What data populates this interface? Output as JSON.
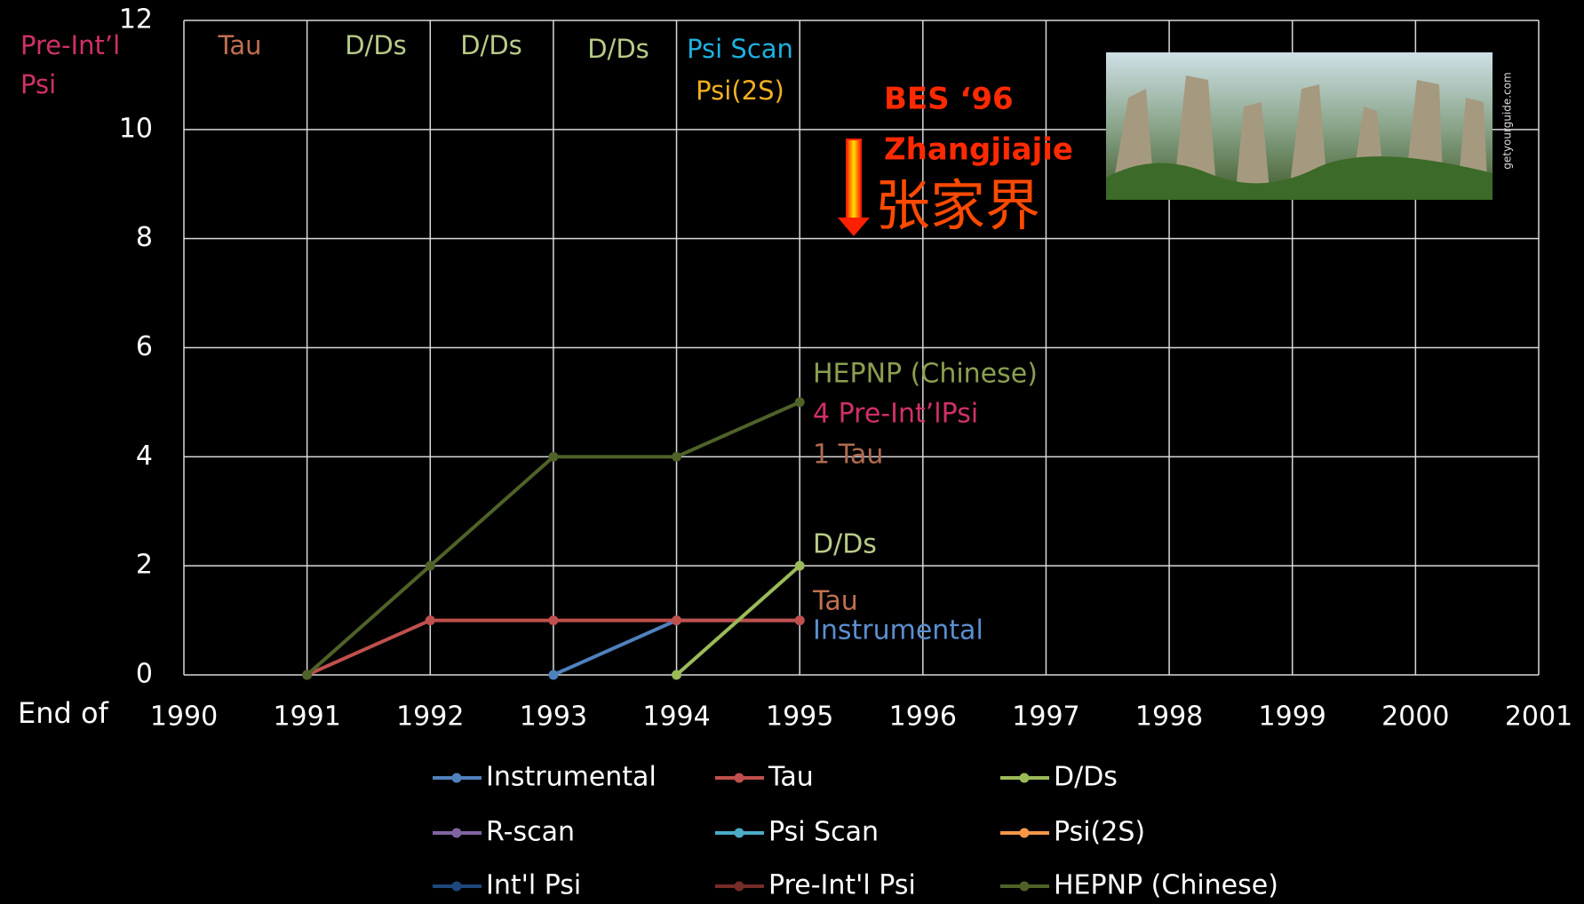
{
  "chart_data": {
    "type": "line",
    "x": [
      1991,
      1992,
      1993,
      1994,
      1995
    ],
    "series": [
      {
        "name": "Instrumental",
        "color": "#4f81bd",
        "values": [
          null,
          null,
          0,
          1,
          1
        ]
      },
      {
        "name": "Tau",
        "color": "#c0504d",
        "values": [
          0,
          1,
          1,
          1,
          1
        ]
      },
      {
        "name": "D/Ds",
        "color": "#9bbb59",
        "values": [
          null,
          null,
          null,
          0,
          2
        ]
      },
      {
        "name": "R-scan",
        "color": "#8064a2",
        "values": [
          null,
          null,
          null,
          null,
          null
        ]
      },
      {
        "name": "Psi Scan",
        "color": "#4bacc6",
        "values": [
          null,
          null,
          null,
          null,
          null
        ]
      },
      {
        "name": "Psi(2S)",
        "color": "#f79646",
        "values": [
          null,
          null,
          null,
          null,
          null
        ]
      },
      {
        "name": "Int'l Psi",
        "color": "#1f497d",
        "values": [
          null,
          null,
          null,
          null,
          null
        ]
      },
      {
        "name": "Pre-Int'l Psi",
        "color": "#772c2a",
        "values": [
          null,
          null,
          null,
          null,
          null
        ]
      },
      {
        "name": "HEPNP (Chinese)",
        "color": "#4f6228",
        "values": [
          0,
          2,
          4,
          4,
          5
        ]
      }
    ],
    "xlim": [
      1990,
      2001
    ],
    "xticks": [
      1990,
      1991,
      1992,
      1993,
      1994,
      1995,
      1996,
      1997,
      1998,
      1999,
      2000,
      2001
    ],
    "ylim": [
      0,
      12
    ],
    "yticks": [
      0,
      2,
      4,
      6,
      8,
      10,
      12
    ],
    "grid": true,
    "legend": "bottom",
    "x_axis_label": "End of",
    "annotations": [
      {
        "text": "Pre-Int’l",
        "color": "#d0306a"
      },
      {
        "text": "Psi",
        "color": "#d0306a"
      },
      {
        "text": "Tau",
        "color": "#c07050"
      },
      {
        "text": "D/Ds",
        "color": "#b8cc88"
      },
      {
        "text": "D/Ds",
        "color": "#b8cc88"
      },
      {
        "text": "D/Ds",
        "color": "#b8cc88"
      },
      {
        "text": "Psi Scan",
        "color": "#20b0e0"
      },
      {
        "text": "Psi(2S)",
        "color": "#f0b020"
      },
      {
        "text": "BES ‘96",
        "color": "#ff2a00"
      },
      {
        "text": "Zhangjiajie",
        "color": "#ff2a00"
      },
      {
        "text": "张家界",
        "color": "#ff4a00"
      },
      {
        "text": "HEPNP (Chinese)",
        "color": "#8aa050"
      },
      {
        "text": "4 Pre-Int’lPsi",
        "color": "#d0306a"
      },
      {
        "text": "1 Tau",
        "color": "#b06a50"
      },
      {
        "text": "D/Ds",
        "color": "#b8cc88"
      },
      {
        "text": "Tau",
        "color": "#c07050"
      },
      {
        "text": "Instrumental",
        "color": "#5b8fd0"
      },
      {
        "text": "getyourguide.com",
        "color": "#dddddd"
      }
    ]
  }
}
